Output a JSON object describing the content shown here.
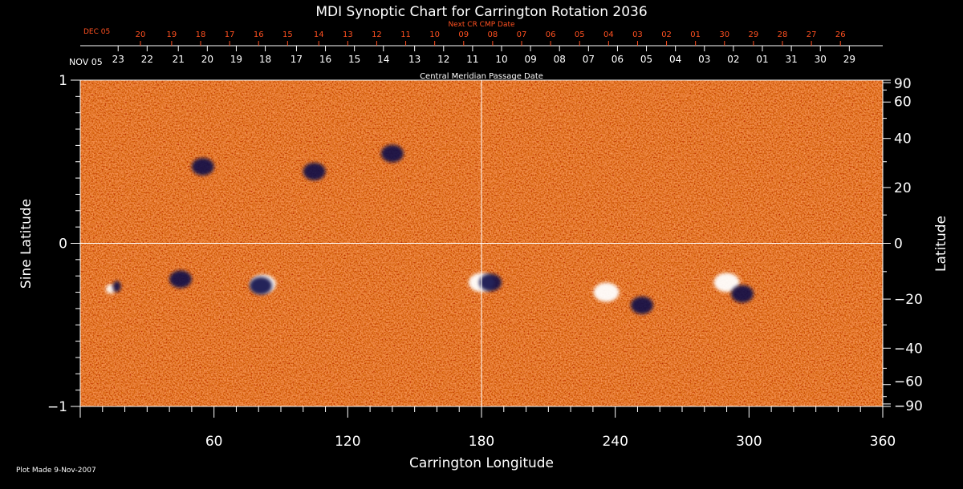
{
  "chart_data": {
    "type": "heatmap",
    "title": "MDI Synoptic Chart for Carrington Rotation 2036",
    "xlabel": "Carrington Longitude",
    "ylabel_left": "Sine Latitude",
    "ylabel_right": "Latitude",
    "xlim": [
      0,
      360
    ],
    "ylim": [
      -1,
      1
    ],
    "x_ticks": [
      60,
      120,
      180,
      240,
      300,
      360
    ],
    "y_left_ticks": [
      {
        "value": 1,
        "label": "1"
      },
      {
        "value": 0,
        "label": "0"
      },
      {
        "value": -1,
        "label": "−1"
      }
    ],
    "y_right_ticks": [
      {
        "deg": 90,
        "label": "90"
      },
      {
        "deg": 60,
        "label": "60"
      },
      {
        "deg": 40,
        "label": "40"
      },
      {
        "deg": 20,
        "label": "20"
      },
      {
        "deg": 0,
        "label": "0"
      },
      {
        "deg": -20,
        "label": "−20"
      },
      {
        "deg": -40,
        "label": "−40"
      },
      {
        "deg": -60,
        "label": "−60"
      },
      {
        "deg": -90,
        "label": "−90"
      }
    ],
    "cmp_axis_label": "Central Meridian Passage Date",
    "cmp_month_label": "NOV 05",
    "cmp_dates": [
      {
        "lon": 17,
        "label": "23"
      },
      {
        "lon": 30,
        "label": "22"
      },
      {
        "lon": 44,
        "label": "21"
      },
      {
        "lon": 57,
        "label": "20"
      },
      {
        "lon": 70,
        "label": "19"
      },
      {
        "lon": 83,
        "label": "18"
      },
      {
        "lon": 97,
        "label": "17"
      },
      {
        "lon": 110,
        "label": "16"
      },
      {
        "lon": 123,
        "label": "15"
      },
      {
        "lon": 136,
        "label": "14"
      },
      {
        "lon": 150,
        "label": "13"
      },
      {
        "lon": 163,
        "label": "12"
      },
      {
        "lon": 176,
        "label": "11"
      },
      {
        "lon": 189,
        "label": "10"
      },
      {
        "lon": 202,
        "label": "09"
      },
      {
        "lon": 215,
        "label": "08"
      },
      {
        "lon": 228,
        "label": "07"
      },
      {
        "lon": 241,
        "label": "06"
      },
      {
        "lon": 254,
        "label": "05"
      },
      {
        "lon": 267,
        "label": "04"
      },
      {
        "lon": 280,
        "label": "03"
      },
      {
        "lon": 293,
        "label": "02"
      },
      {
        "lon": 306,
        "label": "01"
      },
      {
        "lon": 319,
        "label": "31"
      },
      {
        "lon": 332,
        "label": "30"
      },
      {
        "lon": 345,
        "label": "29"
      }
    ],
    "next_cr_label": "Next CR CMP Date",
    "next_cr_month_label": "DEC 05",
    "next_cr_dates": [
      {
        "lon": 27,
        "label": "20"
      },
      {
        "lon": 41,
        "label": "19"
      },
      {
        "lon": 54,
        "label": "18"
      },
      {
        "lon": 67,
        "label": "17"
      },
      {
        "lon": 80,
        "label": "16"
      },
      {
        "lon": 93,
        "label": "15"
      },
      {
        "lon": 107,
        "label": "14"
      },
      {
        "lon": 120,
        "label": "13"
      },
      {
        "lon": 133,
        "label": "12"
      },
      {
        "lon": 146,
        "label": "11"
      },
      {
        "lon": 159,
        "label": "10"
      },
      {
        "lon": 172,
        "label": "09"
      },
      {
        "lon": 185,
        "label": "08"
      },
      {
        "lon": 198,
        "label": "07"
      },
      {
        "lon": 211,
        "label": "06"
      },
      {
        "lon": 224,
        "label": "05"
      },
      {
        "lon": 237,
        "label": "04"
      },
      {
        "lon": 250,
        "label": "03"
      },
      {
        "lon": 263,
        "label": "02"
      },
      {
        "lon": 276,
        "label": "01"
      },
      {
        "lon": 289,
        "label": "30"
      },
      {
        "lon": 302,
        "label": "29"
      },
      {
        "lon": 315,
        "label": "28"
      },
      {
        "lon": 328,
        "label": "27"
      },
      {
        "lon": 341,
        "label": "26"
      }
    ],
    "features": [
      {
        "lon": 15,
        "sinlat": -0.28,
        "polarity": "mixed"
      },
      {
        "lon": 45,
        "sinlat": -0.22,
        "polarity": "negative"
      },
      {
        "lon": 55,
        "sinlat": 0.47,
        "polarity": "negative"
      },
      {
        "lon": 82,
        "sinlat": -0.25,
        "polarity": "positive"
      },
      {
        "lon": 81,
        "sinlat": -0.26,
        "polarity": "negative"
      },
      {
        "lon": 105,
        "sinlat": 0.44,
        "polarity": "negative"
      },
      {
        "lon": 140,
        "sinlat": 0.55,
        "polarity": "negative"
      },
      {
        "lon": 180,
        "sinlat": -0.24,
        "polarity": "positive"
      },
      {
        "lon": 184,
        "sinlat": -0.24,
        "polarity": "negative"
      },
      {
        "lon": 236,
        "sinlat": -0.3,
        "polarity": "positive"
      },
      {
        "lon": 252,
        "sinlat": -0.38,
        "polarity": "negative"
      },
      {
        "lon": 290,
        "sinlat": -0.24,
        "polarity": "positive"
      },
      {
        "lon": 297,
        "sinlat": -0.31,
        "polarity": "negative"
      }
    ],
    "grid": false,
    "guides": {
      "lon": 180,
      "sinlat": 0
    }
  },
  "footer": {
    "plot_made": "Plot Made  9-Nov-2007"
  },
  "colors": {
    "background": "#000000",
    "base": "#e8541c",
    "positive": "#ffffff",
    "negative": "#101048",
    "cmp_text": "#ffffff",
    "next_cr_text": "#ff5020"
  }
}
